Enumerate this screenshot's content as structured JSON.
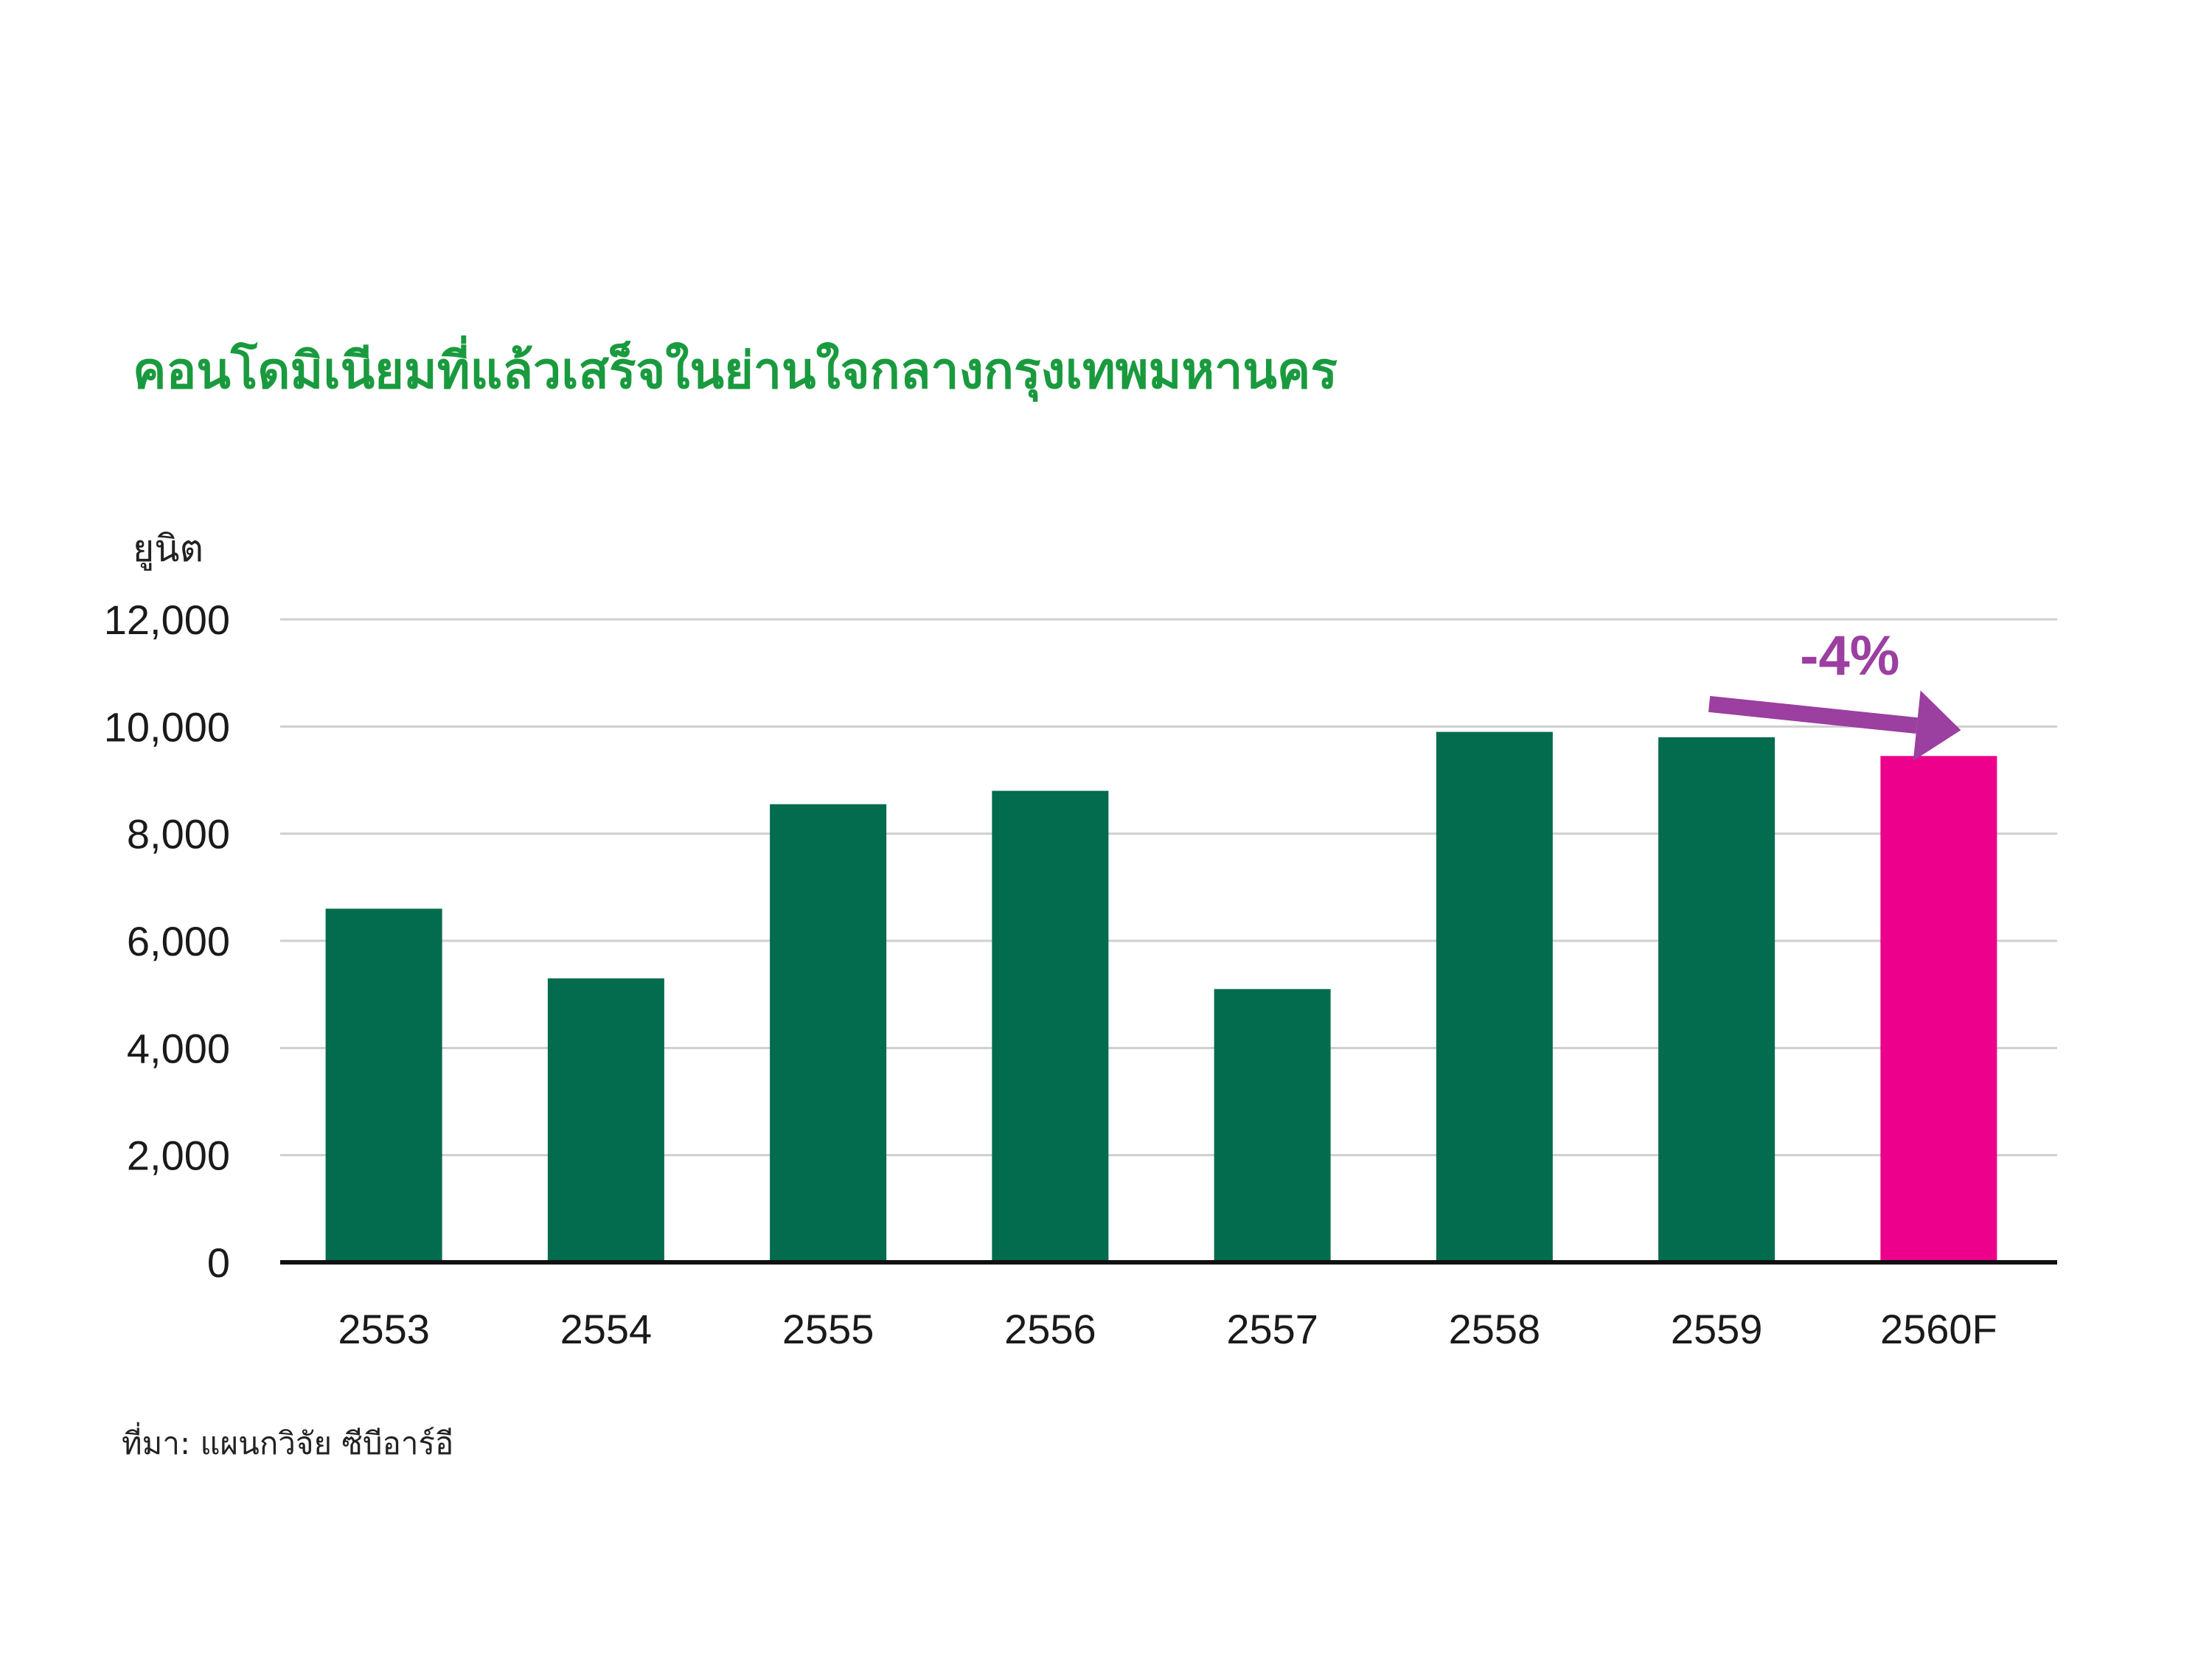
{
  "title": "คอนโดมิเนียมที่แล้วเสร็จในย่านใจกลางกรุงเทพมหานคร",
  "unit_label": "ยูนิต",
  "source": "ที่มา:  แผนกวิจัย ซีบีอาร์อี",
  "chart_data": {
    "type": "bar",
    "title": "คอนโดมิเนียมที่แล้วเสร็จในย่านใจกลางกรุงเทพมหานคร",
    "ylabel": "ยูนิต",
    "xlabel": "",
    "ylim": [
      0,
      12000
    ],
    "yticks": [
      0,
      2000,
      4000,
      6000,
      8000,
      10000,
      12000
    ],
    "ytick_labels": [
      "0",
      "2,000",
      "4,000",
      "6,000",
      "8,000",
      "10,000",
      "12,000"
    ],
    "categories": [
      "2553",
      "2554",
      "2555",
      "2556",
      "2557",
      "2558",
      "2559",
      "2560F"
    ],
    "values": [
      6600,
      5300,
      8550,
      8800,
      5100,
      9900,
      9800,
      9450
    ],
    "bar_colors": [
      "#036b4e",
      "#036b4e",
      "#036b4e",
      "#036b4e",
      "#036b4e",
      "#036b4e",
      "#036b4e",
      "#ec008c"
    ],
    "grid": true,
    "annotation": {
      "text": "-4%",
      "color": "#9b3fa0",
      "from_category": "2559",
      "to_category": "2560F"
    }
  }
}
